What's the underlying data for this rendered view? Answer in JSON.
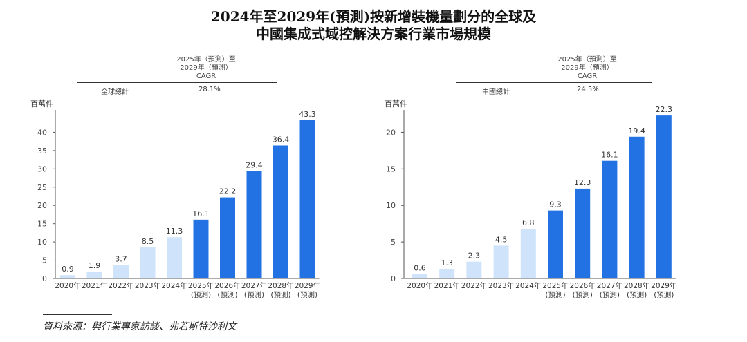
{
  "title_line1": "2024年至2029年(預測)按新增裝機量劃分的全球及",
  "title_line2": "中國集成式域控解決方案行業市場規模",
  "source": "資料來源：與行業專家訪談、弗若斯特沙利文",
  "colors": {
    "history": "#cfe3fa",
    "forecast": "#2272e3",
    "axis": "#555555",
    "text": "#333333"
  },
  "charts": [
    {
      "cagr_header": [
        "2025年（預測）至",
        "2029年（預測）",
        "CAGR"
      ],
      "cagr_label": "全球總計",
      "cagr_value": "28.1%",
      "unit": "百萬件"
    },
    {
      "cagr_header": [
        "2025年（預測）至",
        "2029年（預測）",
        "CAGR"
      ],
      "cagr_label": "中國總計",
      "cagr_value": "24.5%",
      "unit": "百萬件"
    }
  ],
  "chart_data": [
    {
      "type": "bar",
      "categories": [
        "2020年",
        "2021年",
        "2022年",
        "2023年",
        "2024年",
        "2025年\n(預測)",
        "2026年\n(預測)",
        "2027年\n(預測)",
        "2028年\n(預測)",
        "2029年\n(預測)"
      ],
      "values": [
        0.9,
        1.9,
        3.7,
        8.5,
        11.3,
        16.1,
        22.2,
        29.4,
        36.4,
        43.3
      ],
      "value_labels": [
        "0.9",
        "1.9",
        "3.7",
        "8.5",
        "11.3",
        "16.1",
        "22.2",
        "29.4",
        "36.4",
        "43.3"
      ],
      "forecast_from_index": 5,
      "ylabel": "百萬件",
      "ylim": [
        0,
        45
      ],
      "yticks": [
        0,
        5,
        10,
        15,
        20,
        25,
        30,
        35,
        40
      ],
      "ytick_labels": [
        "0",
        "5",
        "10",
        "15",
        "20",
        "25",
        "30",
        "35",
        "40"
      ],
      "grid": false
    },
    {
      "type": "bar",
      "categories": [
        "2020年",
        "2021年",
        "2022年",
        "2023年",
        "2024年",
        "2025年\n(預測)",
        "2026年\n(預測)",
        "2027年\n(預測)",
        "2028年\n(預測)",
        "2029年\n(預測)"
      ],
      "values": [
        0.6,
        1.3,
        2.3,
        4.5,
        6.8,
        9.3,
        12.3,
        16.1,
        19.4,
        22.3
      ],
      "value_labels": [
        "0.6",
        "1.3",
        "2.3",
        "4.5",
        "6.8",
        "9.3",
        "12.3",
        "16.1",
        "19.4",
        "22.3"
      ],
      "forecast_from_index": 5,
      "ylabel": "百萬件",
      "ylim": [
        0,
        22.5
      ],
      "yticks": [
        0,
        5,
        10,
        15,
        20
      ],
      "ytick_labels": [
        "0",
        "5",
        "10",
        "15",
        "20"
      ],
      "grid": false
    }
  ]
}
